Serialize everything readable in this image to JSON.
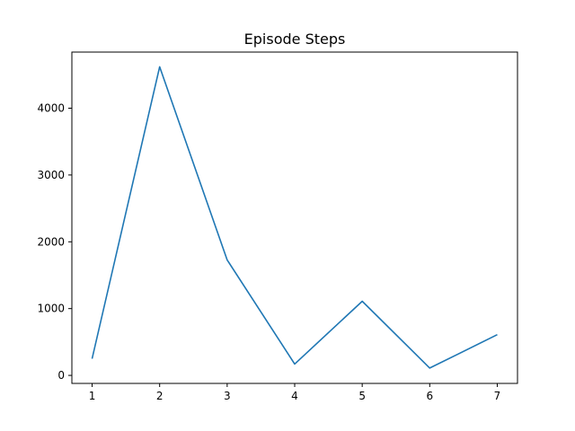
{
  "chart_data": {
    "type": "line",
    "title": "Episode Steps",
    "xlabel": "",
    "ylabel": "",
    "x": [
      1,
      2,
      3,
      4,
      5,
      6,
      7
    ],
    "series": [
      {
        "values": [
          250,
          4620,
          1730,
          170,
          1110,
          110,
          610
        ],
        "color": "#1f77b4"
      }
    ],
    "xlim": [
      0.7,
      7.3
    ],
    "ylim": [
      -120,
      4840
    ],
    "xticks": [
      1,
      2,
      3,
      4,
      5,
      6,
      7
    ],
    "yticks": [
      0,
      1000,
      2000,
      3000,
      4000
    ],
    "grid": false,
    "legend": false
  }
}
